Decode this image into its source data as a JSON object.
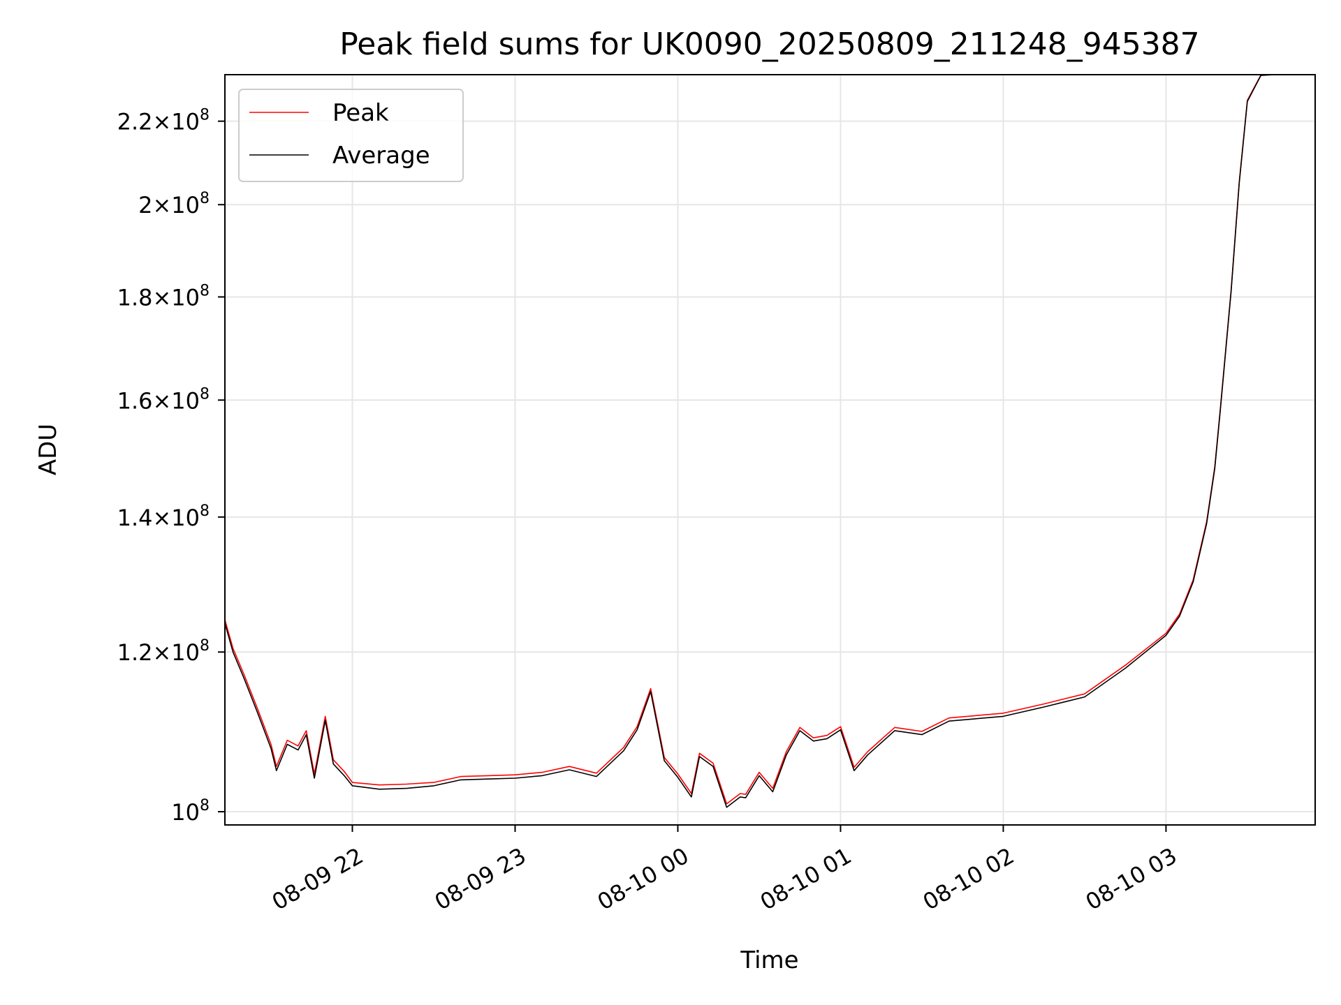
{
  "chart_data": {
    "type": "line",
    "title": "Peak field sums for UK0090_20250809_211248_945387",
    "xlabel": "Time",
    "ylabel": "ADU",
    "y_scale": "log",
    "ylim": [
      98500000,
      232000000
    ],
    "xlim": [
      "2025-08-09 21:13",
      "2025-08-10 03:55"
    ],
    "grid": true,
    "legend_position": "upper-left",
    "x_ticks": [
      {
        "t": "2025-08-09 22:00",
        "label": "08-09 22"
      },
      {
        "t": "2025-08-09 23:00",
        "label": "08-09 23"
      },
      {
        "t": "2025-08-10 00:00",
        "label": "08-10 00"
      },
      {
        "t": "2025-08-10 01:00",
        "label": "08-10 01"
      },
      {
        "t": "2025-08-10 02:00",
        "label": "08-10 02"
      },
      {
        "t": "2025-08-10 03:00",
        "label": "08-10 03"
      }
    ],
    "y_ticks": [
      {
        "value": 100000000,
        "label": "10",
        "exp": "8"
      },
      {
        "value": 120000000,
        "label": "1.2×10",
        "exp": "8"
      },
      {
        "value": 140000000,
        "label": "1.4×10",
        "exp": "8"
      },
      {
        "value": 160000000,
        "label": "1.6×10",
        "exp": "8"
      },
      {
        "value": 180000000,
        "label": "1.8×10",
        "exp": "8"
      },
      {
        "value": 200000000,
        "label": "2×10",
        "exp": "8"
      },
      {
        "value": 220000000,
        "label": "2.2×10",
        "exp": "8"
      }
    ],
    "series": [
      {
        "name": "Average",
        "color": "#000000",
        "x": [
          "2025-08-09 21:13",
          "2025-08-09 21:16",
          "2025-08-09 21:20",
          "2025-08-09 21:25",
          "2025-08-09 21:30",
          "2025-08-09 21:32",
          "2025-08-09 21:36",
          "2025-08-09 21:40",
          "2025-08-09 21:43",
          "2025-08-09 21:46",
          "2025-08-09 21:50",
          "2025-08-09 21:53",
          "2025-08-09 21:57",
          "2025-08-09 22:00",
          "2025-08-09 22:10",
          "2025-08-09 22:20",
          "2025-08-09 22:30",
          "2025-08-09 22:40",
          "2025-08-09 22:50",
          "2025-08-09 23:00",
          "2025-08-09 23:10",
          "2025-08-09 23:20",
          "2025-08-09 23:30",
          "2025-08-09 23:40",
          "2025-08-09 23:45",
          "2025-08-09 23:50",
          "2025-08-09 23:55",
          "2025-08-10 00:00",
          "2025-08-10 00:05",
          "2025-08-10 00:08",
          "2025-08-10 00:13",
          "2025-08-10 00:18",
          "2025-08-10 00:23",
          "2025-08-10 00:25",
          "2025-08-10 00:30",
          "2025-08-10 00:35",
          "2025-08-10 00:40",
          "2025-08-10 00:45",
          "2025-08-10 00:50",
          "2025-08-10 00:55",
          "2025-08-10 01:00",
          "2025-08-10 01:05",
          "2025-08-10 01:10",
          "2025-08-10 01:20",
          "2025-08-10 01:30",
          "2025-08-10 01:40",
          "2025-08-10 02:00",
          "2025-08-10 02:15",
          "2025-08-10 02:30",
          "2025-08-10 02:45",
          "2025-08-10 03:00",
          "2025-08-10 03:05",
          "2025-08-10 03:10",
          "2025-08-10 03:15",
          "2025-08-10 03:18",
          "2025-08-10 03:20",
          "2025-08-10 03:24",
          "2025-08-10 03:27",
          "2025-08-10 03:30",
          "2025-08-10 03:35",
          "2025-08-10 03:40",
          "2025-08-10 03:55"
        ],
        "y": [
          124000000,
          120000000,
          116500000,
          112000000,
          107500000,
          104800000,
          108000000,
          107300000,
          109200000,
          103900000,
          111000000,
          105600000,
          104200000,
          103000000,
          102600000,
          102700000,
          103000000,
          103700000,
          103800000,
          103900000,
          104200000,
          104900000,
          104100000,
          107200000,
          109800000,
          114700000,
          106000000,
          104000000,
          101700000,
          106500000,
          105300000,
          100500000,
          101700000,
          101600000,
          104200000,
          102300000,
          106700000,
          109700000,
          108400000,
          108700000,
          109800000,
          104800000,
          106700000,
          109700000,
          109200000,
          110900000,
          111500000,
          112700000,
          114000000,
          117800000,
          122300000,
          125000000,
          130000000,
          139000000,
          148000000,
          158000000,
          181000000,
          205000000,
          225000000,
          231800000,
          232000000,
          232000000
        ]
      },
      {
        "name": "Peak",
        "color": "#ff0000",
        "x": [
          "2025-08-09 21:13",
          "2025-08-09 21:16",
          "2025-08-09 21:20",
          "2025-08-09 21:25",
          "2025-08-09 21:30",
          "2025-08-09 21:32",
          "2025-08-09 21:36",
          "2025-08-09 21:40",
          "2025-08-09 21:43",
          "2025-08-09 21:46",
          "2025-08-09 21:50",
          "2025-08-09 21:53",
          "2025-08-09 21:57",
          "2025-08-09 22:00",
          "2025-08-09 22:10",
          "2025-08-09 22:20",
          "2025-08-09 22:30",
          "2025-08-09 22:40",
          "2025-08-09 22:50",
          "2025-08-09 23:00",
          "2025-08-09 23:10",
          "2025-08-09 23:20",
          "2025-08-09 23:30",
          "2025-08-09 23:40",
          "2025-08-09 23:45",
          "2025-08-09 23:50",
          "2025-08-09 23:55",
          "2025-08-10 00:00",
          "2025-08-10 00:05",
          "2025-08-10 00:08",
          "2025-08-10 00:13",
          "2025-08-10 00:18",
          "2025-08-10 00:23",
          "2025-08-10 00:25",
          "2025-08-10 00:30",
          "2025-08-10 00:35",
          "2025-08-10 00:40",
          "2025-08-10 00:45",
          "2025-08-10 00:50",
          "2025-08-10 00:55",
          "2025-08-10 01:00",
          "2025-08-10 01:05",
          "2025-08-10 01:10",
          "2025-08-10 01:20",
          "2025-08-10 01:30",
          "2025-08-10 01:40",
          "2025-08-10 02:00",
          "2025-08-10 02:15",
          "2025-08-10 02:30",
          "2025-08-10 02:45",
          "2025-08-10 03:00",
          "2025-08-10 03:05",
          "2025-08-10 03:10",
          "2025-08-10 03:15",
          "2025-08-10 03:18",
          "2025-08-10 03:20",
          "2025-08-10 03:24",
          "2025-08-10 03:27",
          "2025-08-10 03:30",
          "2025-08-10 03:35",
          "2025-08-10 03:40",
          "2025-08-10 03:55"
        ],
        "y": [
          124500000,
          120500000,
          117000000,
          112500000,
          108000000,
          105300000,
          108500000,
          107800000,
          109700000,
          104400000,
          111500000,
          106100000,
          104700000,
          103400000,
          103100000,
          103200000,
          103400000,
          104100000,
          104200000,
          104300000,
          104600000,
          105300000,
          104500000,
          107600000,
          110200000,
          115100000,
          106400000,
          104400000,
          102100000,
          106900000,
          105700000,
          100900000,
          102100000,
          102000000,
          104600000,
          102700000,
          107100000,
          110100000,
          108800000,
          109100000,
          110200000,
          105200000,
          107100000,
          110100000,
          109600000,
          111300000,
          111900000,
          113100000,
          114400000,
          118200000,
          122600000,
          125300000,
          130300000,
          139300000,
          148300000,
          158300000,
          181300000,
          205300000,
          225300000,
          231900000,
          232000000,
          232000000
        ]
      }
    ]
  }
}
